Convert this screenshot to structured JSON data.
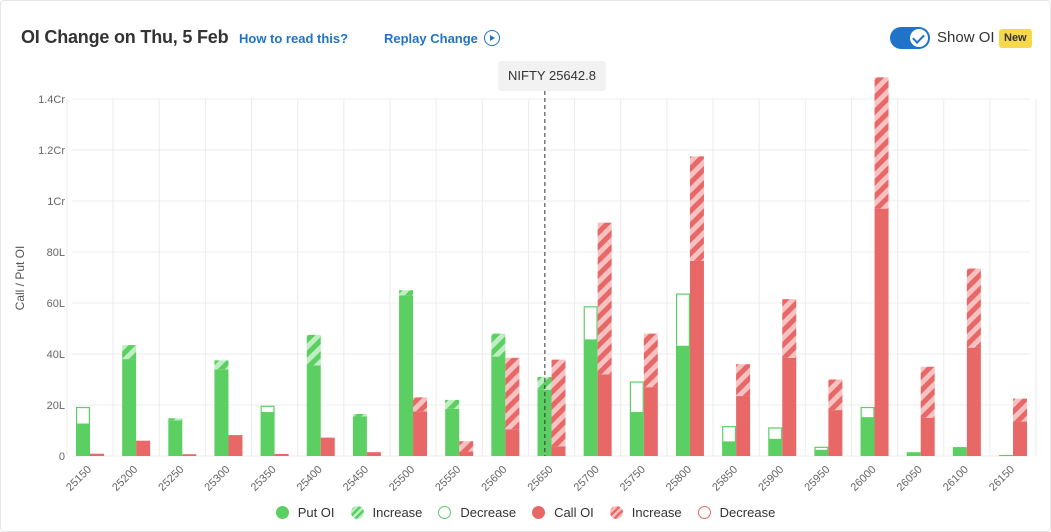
{
  "header": {
    "title": "OI Change on Thu, 5 Feb",
    "how_to_read_label": "How to read this?",
    "replay_label": "Replay Change",
    "show_oi_label": "Show OI",
    "new_badge": "New",
    "show_oi_enabled": true
  },
  "tooltip": {
    "label": "NIFTY 25642.8"
  },
  "legend": {
    "items": [
      {
        "label": "Put OI",
        "kind": "put"
      },
      {
        "label": "Increase",
        "kind": "put-increase"
      },
      {
        "label": "Decrease",
        "kind": "put-decrease"
      },
      {
        "label": "Call OI",
        "kind": "call"
      },
      {
        "label": "Increase",
        "kind": "call-increase"
      },
      {
        "label": "Decrease",
        "kind": "call-decrease"
      }
    ]
  },
  "colors": {
    "put": "#5ccf63",
    "put_stripe": "#bfeec2",
    "call": "#e86868",
    "call_stripe": "#f7c2c2",
    "accent": "#1f73c9",
    "badge": "#f6d84a"
  },
  "chart_data": {
    "type": "bar",
    "ylabel": "Call / Put OI",
    "ylim": [
      0,
      14000000
    ],
    "yticks": [
      {
        "value": 0,
        "label": "0"
      },
      {
        "value": 2000000,
        "label": "20L"
      },
      {
        "value": 4000000,
        "label": "40L"
      },
      {
        "value": 6000000,
        "label": "60L"
      },
      {
        "value": 8000000,
        "label": "80L"
      },
      {
        "value": 10000000,
        "label": "1Cr"
      },
      {
        "value": 12000000,
        "label": "1.2Cr"
      },
      {
        "value": 14000000,
        "label": "1.4Cr"
      }
    ],
    "spot": 25642.8,
    "grid": true,
    "legend_position": "bottom",
    "categories": [
      "25150",
      "25200",
      "25250",
      "25300",
      "25350",
      "25400",
      "25450",
      "25500",
      "25550",
      "25600",
      "25650",
      "25700",
      "25750",
      "25800",
      "25850",
      "25900",
      "25950",
      "26000",
      "26050",
      "26100",
      "26150"
    ],
    "series": [
      {
        "name": "Put OI",
        "base": [
          1250000,
          3800000,
          1400000,
          3400000,
          1700000,
          3550000,
          1550000,
          6300000,
          1850000,
          3900000,
          2600000,
          4550000,
          1700000,
          4300000,
          550000,
          650000,
          220000,
          1500000,
          150000,
          350000,
          40000
        ],
        "change": [
          -650000,
          550000,
          80000,
          350000,
          -250000,
          1200000,
          100000,
          200000,
          350000,
          900000,
          500000,
          -1300000,
          -1200000,
          -2050000,
          -600000,
          -450000,
          -120000,
          -400000,
          0,
          0,
          0
        ]
      },
      {
        "name": "Call OI",
        "base": [
          90000,
          600000,
          70000,
          820000,
          80000,
          720000,
          150000,
          1750000,
          180000,
          1050000,
          380000,
          3200000,
          2700000,
          7650000,
          2350000,
          3850000,
          1800000,
          9700000,
          1500000,
          4250000,
          1350000
        ],
        "change": [
          0,
          0,
          0,
          0,
          0,
          0,
          0,
          550000,
          400000,
          2800000,
          3400000,
          5950000,
          2100000,
          4100000,
          1250000,
          2300000,
          1200000,
          5150000,
          2000000,
          3100000,
          900000
        ]
      }
    ]
  }
}
